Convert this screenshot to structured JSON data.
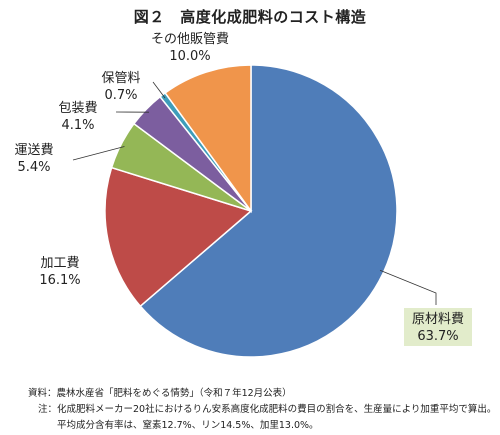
{
  "title": "図２　高度化成肥料のコスト構造",
  "chart_data": {
    "type": "pie",
    "title": "図２　高度化成肥料のコスト構造",
    "unit": "%",
    "slices": [
      {
        "label": "原材料費",
        "value": 63.7,
        "value_text": "63.7%",
        "color": "#4F7DB9"
      },
      {
        "label": "加工費",
        "value": 16.1,
        "value_text": "16.1%",
        "color": "#BE4B48"
      },
      {
        "label": "運送費",
        "value": 5.4,
        "value_text": "5.4%",
        "color": "#94B756"
      },
      {
        "label": "包装費",
        "value": 4.1,
        "value_text": "4.1%",
        "color": "#7C5E9F"
      },
      {
        "label": "保管料",
        "value": 0.7,
        "value_text": "0.7%",
        "color": "#3E9DBA"
      },
      {
        "label": "その他販管費",
        "value": 10.0,
        "value_text": "10.0%",
        "color": "#F0954B"
      }
    ],
    "start": "12 o'clock",
    "direction": "clockwise",
    "highlight_label": {
      "slice": "原材料費",
      "background": "#E2ECCB"
    }
  },
  "notes": {
    "source_head": "資料：",
    "source_text": "農林水産省「肥料をめぐる情勢」（令和７年12月公表）",
    "note_head": "注：",
    "note_text": "化成肥料メーカー20社におけるりん安系高度化成肥料の費目の割合を、生産量により加重平均で算出。平均成分含有率は、窒素12.7%、リン14.5%、加里13.0%。"
  }
}
